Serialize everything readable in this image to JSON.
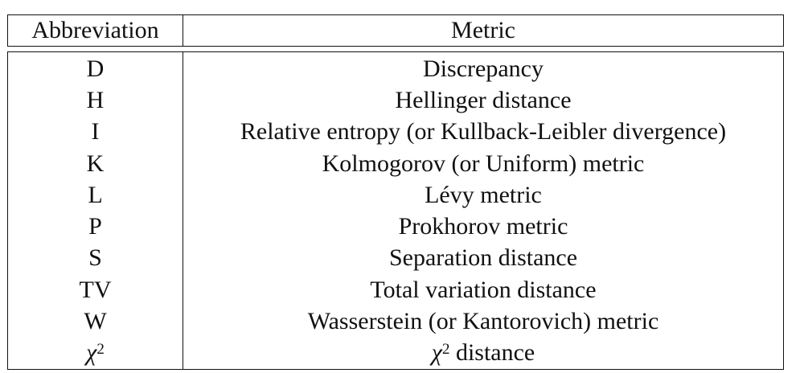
{
  "header": {
    "abbreviation": "Abbreviation",
    "metric": "Metric"
  },
  "rows": [
    {
      "abbr": "D",
      "metric": "Discrepancy"
    },
    {
      "abbr": "H",
      "metric": "Hellinger distance"
    },
    {
      "abbr": "I",
      "metric": "Relative entropy (or Kullback-Leibler divergence)"
    },
    {
      "abbr": "K",
      "metric": "Kolmogorov (or Uniform) metric"
    },
    {
      "abbr": "L",
      "metric": "Lévy metric"
    },
    {
      "abbr": "P",
      "metric": "Prokhorov metric"
    },
    {
      "abbr": "S",
      "metric": "Separation distance"
    },
    {
      "abbr": "TV",
      "metric": "Total variation distance"
    },
    {
      "abbr": "W",
      "metric": "Wasserstein (or Kantorovich) metric"
    }
  ],
  "last_row": {
    "abbr_symbol": "χ",
    "abbr_sup": "2",
    "metric_symbol": "χ",
    "metric_sup": "2",
    "metric_text": " distance"
  }
}
